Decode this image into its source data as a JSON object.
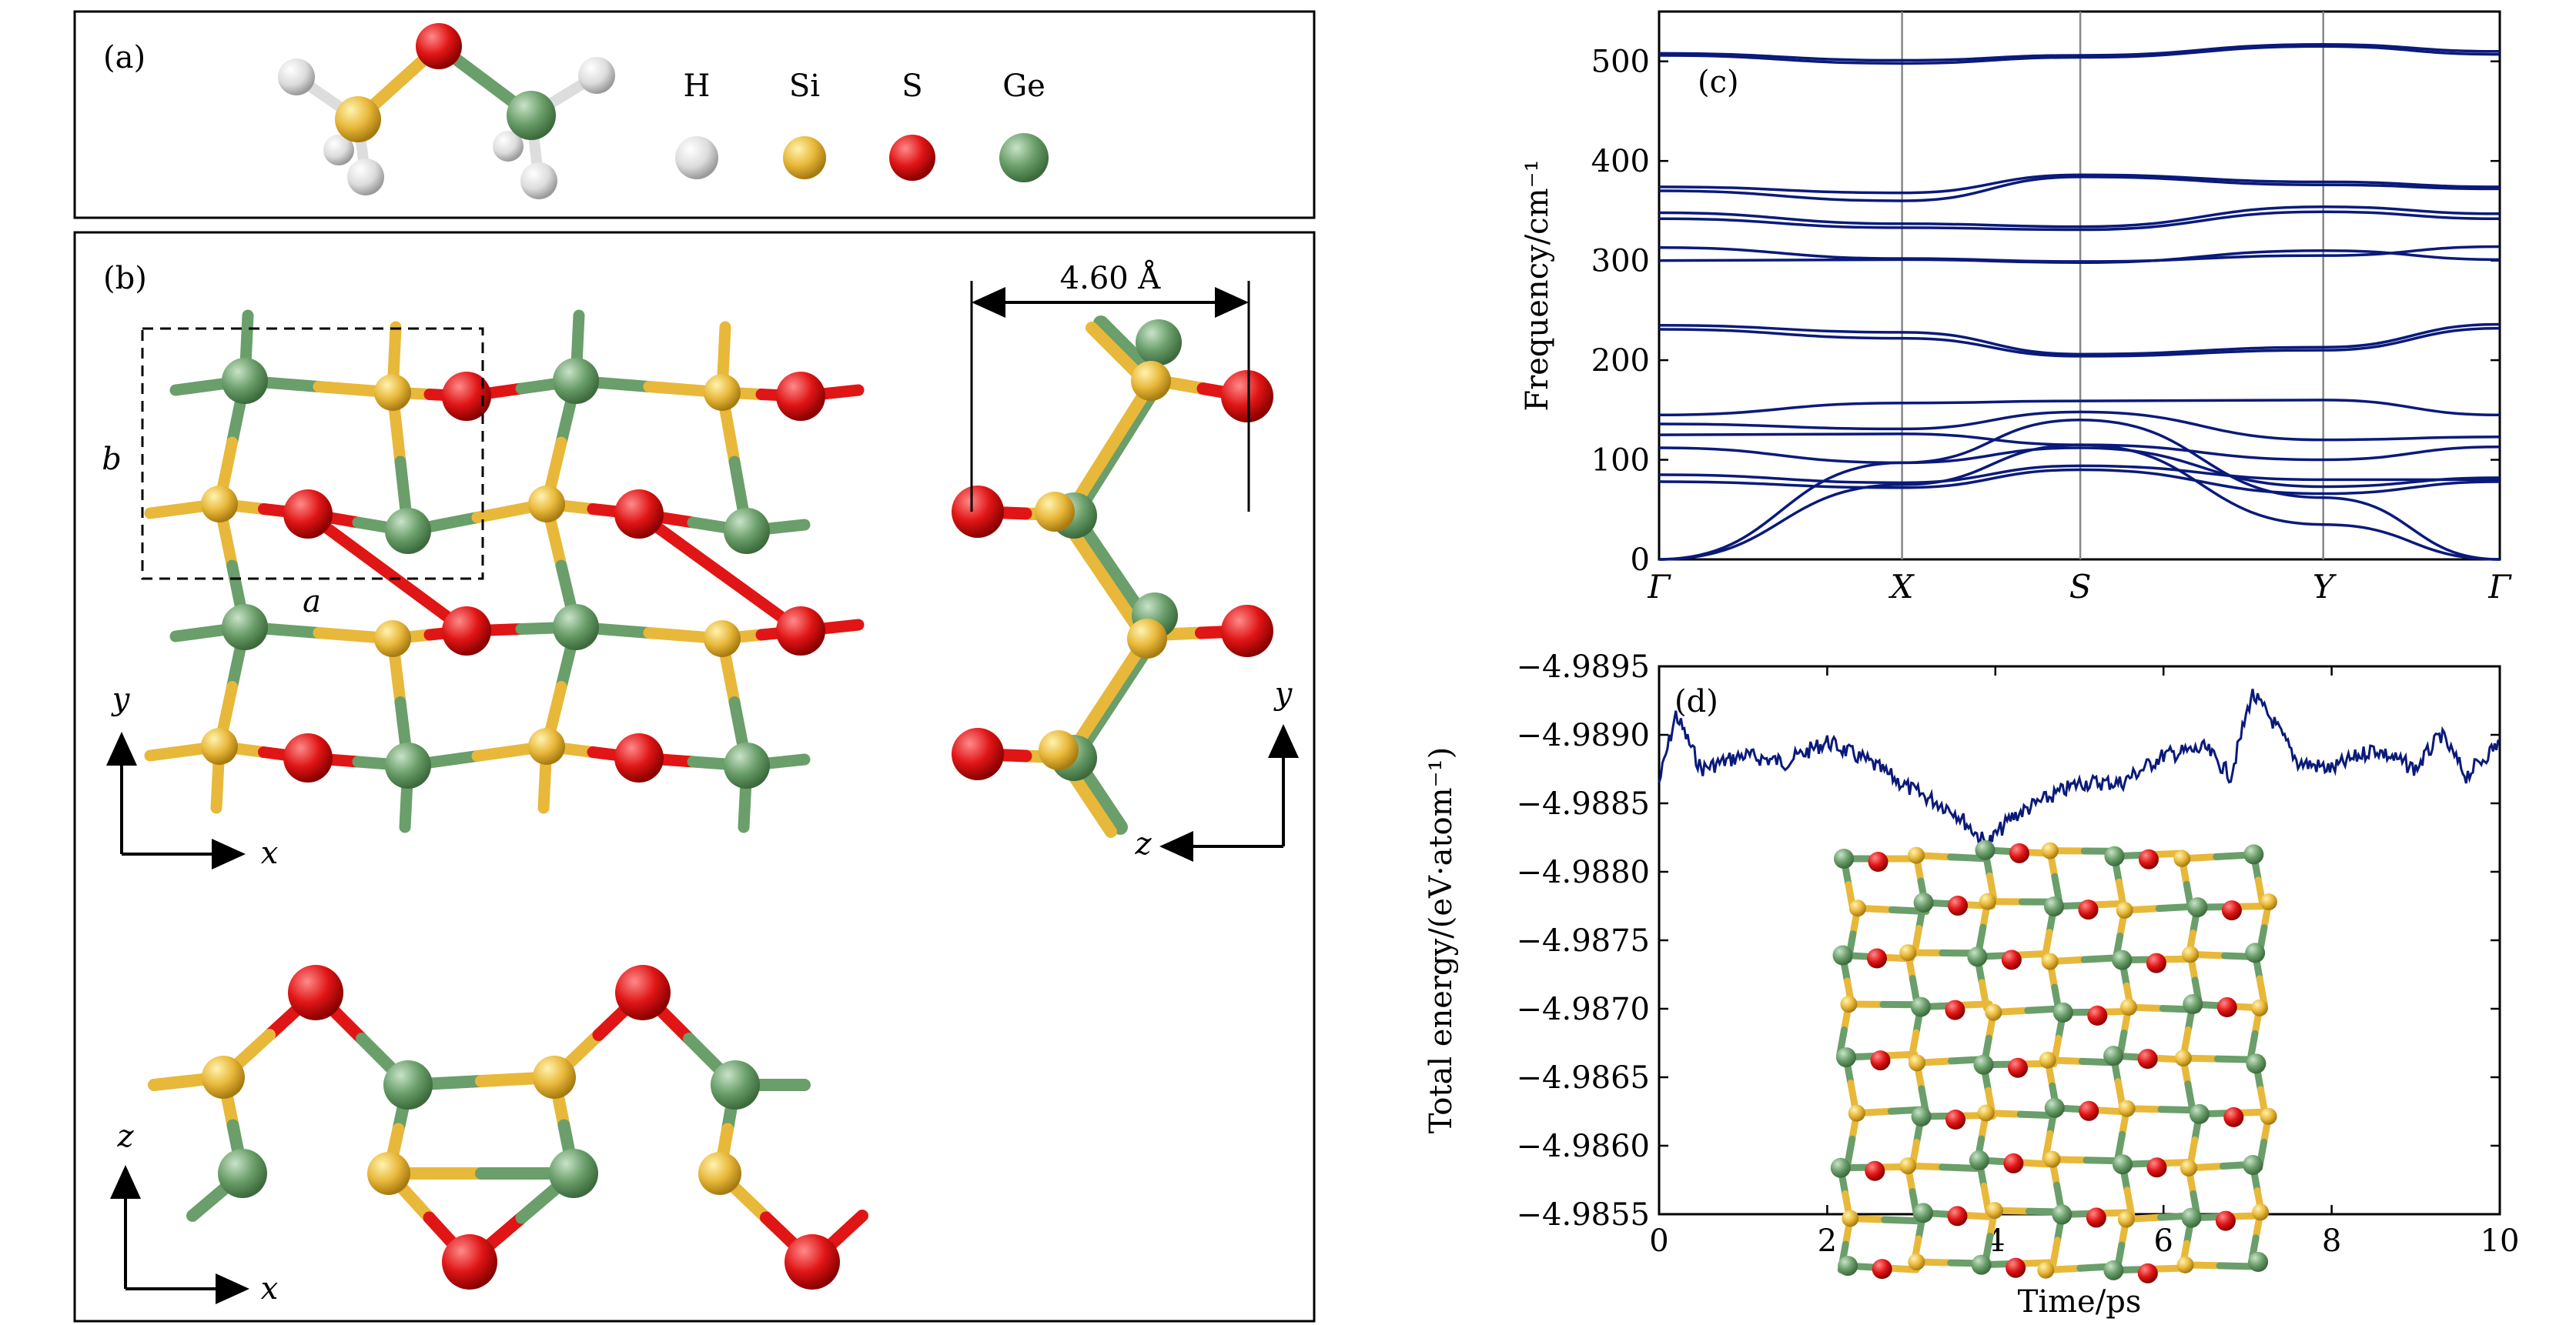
{
  "panel_a": {
    "label": "(a)",
    "legend": [
      {
        "symbol": "H",
        "color": "#e6e6e6"
      },
      {
        "symbol": "Si",
        "color": "#e8b83a"
      },
      {
        "symbol": "S",
        "color": "#e01515"
      },
      {
        "symbol": "Ge",
        "color": "#6a9e6a"
      }
    ]
  },
  "panel_b": {
    "label": "(b)",
    "lattice_a": "a",
    "lattice_b": "b",
    "width_annotation": "4.60 Å",
    "axes_top": [
      "x",
      "y"
    ],
    "axes_side": [
      "z",
      "y"
    ],
    "axes_bottom": [
      "x",
      "z"
    ]
  },
  "colors": {
    "Si": "#e8b83a",
    "S": "#e01515",
    "Ge": "#6a9e6a",
    "H": "#e6e6e6",
    "line": "#0a1a7a",
    "kpath_line": "#888888"
  },
  "chart_data": [
    {
      "type": "line",
      "panel_label": "(c)",
      "ylabel": "Frequency/cm⁻¹",
      "ylim": [
        0,
        550
      ],
      "yticks": [
        0,
        100,
        200,
        300,
        400,
        500
      ],
      "xticks": [
        "Γ",
        "X",
        "S",
        "Y",
        "Γ"
      ],
      "xtick_positions": [
        0,
        0.289,
        0.501,
        0.79,
        1.0
      ],
      "grid": "vertical lines at high-symmetry points",
      "series": [
        {
          "x": [
            0,
            0.289,
            0.501,
            0.79,
            1.0
          ],
          "values": [
            508,
            501,
            506,
            517,
            510
          ]
        },
        {
          "x": [
            0,
            0.289,
            0.501,
            0.79,
            1.0
          ],
          "values": [
            506,
            498,
            504,
            515,
            507
          ]
        },
        {
          "x": [
            0,
            0.289,
            0.501,
            0.79,
            1.0
          ],
          "values": [
            374,
            368,
            386,
            379,
            374
          ]
        },
        {
          "x": [
            0,
            0.289,
            0.501,
            0.79,
            1.0
          ],
          "values": [
            370,
            360,
            384,
            376,
            372
          ]
        },
        {
          "x": [
            0,
            0.289,
            0.501,
            0.79,
            1.0
          ],
          "values": [
            348,
            337,
            334,
            354,
            347
          ]
        },
        {
          "x": [
            0,
            0.289,
            0.501,
            0.79,
            1.0
          ],
          "values": [
            342,
            333,
            331,
            349,
            342
          ]
        },
        {
          "x": [
            0,
            0.289,
            0.501,
            0.79,
            1.0
          ],
          "values": [
            313,
            302,
            299,
            305,
            314
          ]
        },
        {
          "x": [
            0,
            0.289,
            0.501,
            0.79,
            1.0
          ],
          "values": [
            300,
            301,
            298,
            310,
            301
          ]
        },
        {
          "x": [
            0,
            0.289,
            0.501,
            0.79,
            1.0
          ],
          "values": [
            235,
            228,
            206,
            213,
            236
          ]
        },
        {
          "x": [
            0,
            0.289,
            0.501,
            0.79,
            1.0
          ],
          "values": [
            231,
            222,
            204,
            210,
            232
          ]
        },
        {
          "x": [
            0,
            0.289,
            0.501,
            0.79,
            1.0
          ],
          "values": [
            145,
            157,
            159,
            160,
            145
          ]
        },
        {
          "x": [
            0,
            0.289,
            0.501,
            0.79,
            1.0
          ],
          "values": [
            136,
            131,
            148,
            120,
            123
          ]
        },
        {
          "x": [
            0,
            0.289,
            0.501,
            0.79,
            1.0
          ],
          "values": [
            125,
            126,
            115,
            100,
            113
          ]
        },
        {
          "x": [
            0,
            0.289,
            0.501,
            0.79,
            1.0
          ],
          "values": [
            112,
            97,
            112,
            73,
            82
          ]
        },
        {
          "x": [
            0,
            0.289,
            0.501,
            0.79,
            1.0
          ],
          "values": [
            85,
            77,
            94,
            80,
            80
          ]
        },
        {
          "x": [
            0,
            0.289,
            0.501,
            0.79,
            1.0
          ],
          "values": [
            78,
            72,
            90,
            66,
            78
          ]
        },
        {
          "x": [
            0,
            0.289,
            0.501,
            0.79,
            1.0
          ],
          "values": [
            0,
            97,
            140,
            62,
            0
          ]
        },
        {
          "x": [
            0,
            0.289,
            0.501,
            0.79,
            1.0
          ],
          "values": [
            0,
            75,
            115,
            35,
            0
          ]
        }
      ]
    },
    {
      "type": "line",
      "panel_label": "(d)",
      "xlabel": "Time/ps",
      "ylabel": "Total energy/(eV·atom⁻¹)",
      "xlim": [
        0,
        10
      ],
      "ylim": [
        -4.9855,
        -4.9895
      ],
      "y_inverted": true,
      "xticks": [
        0,
        2,
        4,
        6,
        8,
        10
      ],
      "yticks": [
        -4.9895,
        -4.989,
        -4.9885,
        -4.988,
        -4.9875,
        -4.987,
        -4.9865,
        -4.986,
        -4.9855
      ],
      "series": [
        {
          "x": [
            0,
            0.2,
            0.5,
            1.0,
            1.5,
            2.0,
            2.5,
            3.0,
            3.5,
            3.9,
            4.2,
            4.5,
            5.0,
            5.5,
            6.0,
            6.5,
            6.8,
            7.05,
            7.3,
            7.6,
            8.0,
            8.5,
            9.0,
            9.3,
            9.6,
            10.0
          ],
          "values": [
            -4.98865,
            -4.98915,
            -4.98875,
            -4.98885,
            -4.9888,
            -4.98895,
            -4.9888,
            -4.9886,
            -4.98845,
            -4.9882,
            -4.9884,
            -4.9885,
            -4.98865,
            -4.98865,
            -4.98885,
            -4.9889,
            -4.9887,
            -4.9893,
            -4.9891,
            -4.9888,
            -4.98875,
            -4.9889,
            -4.98875,
            -4.989,
            -4.9887,
            -4.98895
          ]
        }
      ]
    }
  ]
}
